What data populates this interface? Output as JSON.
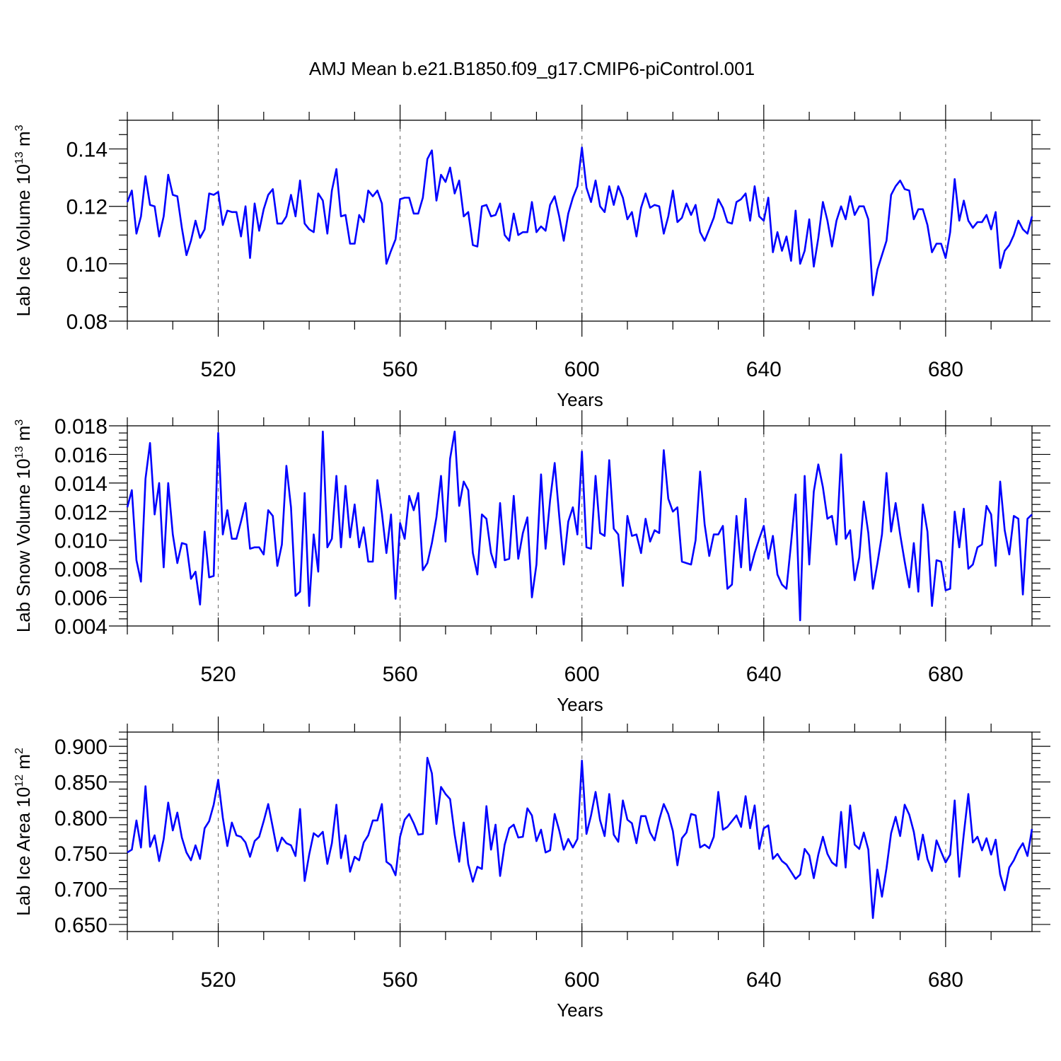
{
  "figure": {
    "title": "AMJ Mean b.e21.B1850.f09_g17.CMIP6-piControl.001"
  },
  "chart_data": [
    {
      "type": "line",
      "xlabel": "Years",
      "ylabel_main": "Lab Ice Volume 10",
      "ylabel_exp": "13",
      "ylabel_unit": " m",
      "ylabel_unit_exp": "3",
      "xlim": [
        500,
        699
      ],
      "ylim": [
        0.08,
        0.15
      ],
      "xticks": [
        520,
        560,
        600,
        640,
        680
      ],
      "xticklabels": [
        "520",
        "560",
        "600",
        "640",
        "680"
      ],
      "yticks": [
        0.08,
        0.1,
        0.12,
        0.14
      ],
      "yticklabels": [
        "0.08",
        "0.10",
        "0.12",
        "0.14"
      ],
      "yminor_step": 0.005,
      "grid_x_dashed": true,
      "color": "#0000ff",
      "x_start": 500,
      "x_step": 1,
      "values": [
        0.1215,
        0.1255,
        0.1105,
        0.1165,
        0.1305,
        0.1205,
        0.12,
        0.1095,
        0.1165,
        0.131,
        0.124,
        0.1235,
        0.1125,
        0.103,
        0.108,
        0.115,
        0.109,
        0.112,
        0.1245,
        0.124,
        0.125,
        0.1135,
        0.1185,
        0.118,
        0.118,
        0.1095,
        0.12,
        0.102,
        0.121,
        0.1115,
        0.119,
        0.124,
        0.126,
        0.114,
        0.114,
        0.1165,
        0.124,
        0.1165,
        0.129,
        0.114,
        0.112,
        0.111,
        0.1245,
        0.122,
        0.1105,
        0.1255,
        0.133,
        0.1165,
        0.117,
        0.107,
        0.107,
        0.117,
        0.1145,
        0.1255,
        0.1235,
        0.1255,
        0.121,
        0.1,
        0.1045,
        0.1085,
        0.1225,
        0.123,
        0.123,
        0.1175,
        0.1175,
        0.123,
        0.1365,
        0.1395,
        0.122,
        0.131,
        0.1285,
        0.1335,
        0.1245,
        0.129,
        0.1165,
        0.118,
        0.1065,
        0.106,
        0.12,
        0.1205,
        0.1165,
        0.117,
        0.121,
        0.11,
        0.108,
        0.1175,
        0.11,
        0.111,
        0.111,
        0.1215,
        0.111,
        0.113,
        0.1115,
        0.1205,
        0.1235,
        0.1165,
        0.108,
        0.1175,
        0.123,
        0.127,
        0.1405,
        0.1265,
        0.1215,
        0.129,
        0.12,
        0.118,
        0.127,
        0.1205,
        0.127,
        0.123,
        0.1155,
        0.118,
        0.1095,
        0.1195,
        0.1245,
        0.1195,
        0.1205,
        0.12,
        0.1105,
        0.1165,
        0.1255,
        0.1145,
        0.116,
        0.121,
        0.117,
        0.1205,
        0.111,
        0.108,
        0.112,
        0.116,
        0.1225,
        0.1195,
        0.1145,
        0.114,
        0.1215,
        0.1225,
        0.1245,
        0.115,
        0.127,
        0.1165,
        0.115,
        0.123,
        0.104,
        0.111,
        0.1045,
        0.1095,
        0.101,
        0.1185,
        0.1,
        0.1045,
        0.1155,
        0.099,
        0.109,
        0.1215,
        0.115,
        0.106,
        0.115,
        0.12,
        0.1155,
        0.1235,
        0.117,
        0.12,
        0.12,
        0.1155,
        0.089,
        0.098,
        0.103,
        0.108,
        0.124,
        0.127,
        0.129,
        0.126,
        0.1255,
        0.1155,
        0.119,
        0.119,
        0.1135,
        0.104,
        0.107,
        0.107,
        0.102,
        0.111,
        0.1295,
        0.115,
        0.122,
        0.115,
        0.1125,
        0.1145,
        0.1145,
        0.117,
        0.112,
        0.118,
        0.0985,
        0.1045,
        0.1065,
        0.11,
        0.115,
        0.112,
        0.1105,
        0.1165
      ]
    },
    {
      "type": "line",
      "xlabel": "Years",
      "ylabel_main": "Lab Snow Volume 10",
      "ylabel_exp": "13",
      "ylabel_unit": " m",
      "ylabel_unit_exp": "3",
      "xlim": [
        500,
        699
      ],
      "ylim": [
        0.004,
        0.018
      ],
      "xticks": [
        520,
        560,
        600,
        640,
        680
      ],
      "xticklabels": [
        "520",
        "560",
        "600",
        "640",
        "680"
      ],
      "yticks": [
        0.004,
        0.006,
        0.008,
        0.01,
        0.012,
        0.014,
        0.016,
        0.018
      ],
      "yticklabels": [
        "0.004",
        "0.006",
        "0.008",
        "0.010",
        "0.012",
        "0.014",
        "0.016",
        "0.018"
      ],
      "yminor_step": 0.0005,
      "grid_x_dashed": true,
      "color": "#0000ff",
      "x_start": 500,
      "x_step": 1,
      "values": [
        0.0123,
        0.0135,
        0.0086,
        0.0071,
        0.0143,
        0.0168,
        0.0118,
        0.014,
        0.0081,
        0.014,
        0.0104,
        0.0084,
        0.0098,
        0.0097,
        0.0073,
        0.0078,
        0.0055,
        0.0106,
        0.0074,
        0.0075,
        0.0175,
        0.0104,
        0.0121,
        0.0101,
        0.0101,
        0.0113,
        0.0126,
        0.0094,
        0.0095,
        0.0095,
        0.009,
        0.0121,
        0.0117,
        0.0082,
        0.0097,
        0.0152,
        0.0123,
        0.0061,
        0.0064,
        0.0133,
        0.0054,
        0.0104,
        0.0078,
        0.0176,
        0.0095,
        0.0101,
        0.0145,
        0.0095,
        0.0138,
        0.0102,
        0.0125,
        0.0095,
        0.0109,
        0.0085,
        0.0085,
        0.0142,
        0.0119,
        0.0091,
        0.0118,
        0.0059,
        0.0112,
        0.0101,
        0.0131,
        0.0121,
        0.0133,
        0.0079,
        0.0084,
        0.0098,
        0.0116,
        0.0145,
        0.0099,
        0.0157,
        0.0176,
        0.0124,
        0.0141,
        0.0135,
        0.0091,
        0.0076,
        0.0118,
        0.0115,
        0.0091,
        0.0081,
        0.0126,
        0.0086,
        0.0087,
        0.0131,
        0.0087,
        0.0105,
        0.0116,
        0.006,
        0.0083,
        0.0146,
        0.0094,
        0.0128,
        0.0154,
        0.0117,
        0.0083,
        0.0113,
        0.0123,
        0.0104,
        0.0162,
        0.0095,
        0.0094,
        0.0145,
        0.0105,
        0.0103,
        0.0156,
        0.0108,
        0.0104,
        0.0068,
        0.0117,
        0.0103,
        0.0104,
        0.0091,
        0.0115,
        0.0099,
        0.0107,
        0.0105,
        0.0163,
        0.0129,
        0.012,
        0.0123,
        0.0085,
        0.0084,
        0.0083,
        0.01,
        0.0148,
        0.0111,
        0.0089,
        0.0104,
        0.0104,
        0.011,
        0.0066,
        0.0069,
        0.0117,
        0.0081,
        0.0129,
        0.0079,
        0.0091,
        0.0101,
        0.011,
        0.0087,
        0.0103,
        0.0076,
        0.0069,
        0.0066,
        0.0098,
        0.0132,
        0.0044,
        0.0145,
        0.0083,
        0.0134,
        0.0153,
        0.0137,
        0.0115,
        0.0117,
        0.0097,
        0.016,
        0.0101,
        0.0107,
        0.0072,
        0.0088,
        0.0127,
        0.0105,
        0.0066,
        0.0084,
        0.0104,
        0.0147,
        0.0106,
        0.0126,
        0.0104,
        0.0085,
        0.0067,
        0.0098,
        0.0064,
        0.0125,
        0.0106,
        0.0054,
        0.0086,
        0.0085,
        0.0065,
        0.0066,
        0.012,
        0.0095,
        0.0122,
        0.008,
        0.0083,
        0.0095,
        0.0097,
        0.0124,
        0.0118,
        0.0082,
        0.0141,
        0.0107,
        0.009,
        0.0117,
        0.0115,
        0.0062,
        0.0115,
        0.0118
      ]
    },
    {
      "type": "line",
      "xlabel": "Years",
      "ylabel_main": "Lab Ice Area 10",
      "ylabel_exp": "12",
      "ylabel_unit": " m",
      "ylabel_unit_exp": "2",
      "xlim": [
        500,
        699
      ],
      "ylim": [
        0.64,
        0.92
      ],
      "xticks": [
        520,
        560,
        600,
        640,
        680
      ],
      "xticklabels": [
        "520",
        "560",
        "600",
        "640",
        "680"
      ],
      "yticks": [
        0.65,
        0.7,
        0.75,
        0.8,
        0.85,
        0.9
      ],
      "yticklabels": [
        "0.650",
        "0.700",
        "0.750",
        "0.800",
        "0.850",
        "0.900"
      ],
      "yminor_step": 0.01,
      "grid_x_dashed": true,
      "color": "#0000ff",
      "x_start": 500,
      "x_step": 1,
      "values": [
        0.751,
        0.755,
        0.796,
        0.758,
        0.844,
        0.759,
        0.775,
        0.739,
        0.77,
        0.821,
        0.782,
        0.807,
        0.772,
        0.751,
        0.74,
        0.761,
        0.742,
        0.785,
        0.795,
        0.818,
        0.853,
        0.8,
        0.76,
        0.793,
        0.775,
        0.773,
        0.765,
        0.745,
        0.767,
        0.773,
        0.795,
        0.819,
        0.786,
        0.753,
        0.772,
        0.764,
        0.761,
        0.746,
        0.812,
        0.711,
        0.748,
        0.778,
        0.773,
        0.78,
        0.735,
        0.764,
        0.818,
        0.743,
        0.775,
        0.724,
        0.745,
        0.74,
        0.765,
        0.775,
        0.796,
        0.796,
        0.819,
        0.738,
        0.733,
        0.719,
        0.773,
        0.797,
        0.805,
        0.792,
        0.776,
        0.777,
        0.884,
        0.862,
        0.791,
        0.843,
        0.833,
        0.826,
        0.776,
        0.738,
        0.793,
        0.735,
        0.71,
        0.731,
        0.728,
        0.816,
        0.755,
        0.79,
        0.718,
        0.762,
        0.785,
        0.79,
        0.772,
        0.773,
        0.813,
        0.803,
        0.767,
        0.783,
        0.751,
        0.754,
        0.805,
        0.782,
        0.755,
        0.77,
        0.758,
        0.77,
        0.88,
        0.777,
        0.803,
        0.836,
        0.796,
        0.774,
        0.833,
        0.776,
        0.766,
        0.824,
        0.797,
        0.792,
        0.764,
        0.802,
        0.802,
        0.779,
        0.768,
        0.797,
        0.819,
        0.805,
        0.781,
        0.733,
        0.771,
        0.779,
        0.805,
        0.803,
        0.758,
        0.762,
        0.757,
        0.773,
        0.836,
        0.783,
        0.787,
        0.795,
        0.803,
        0.787,
        0.83,
        0.785,
        0.817,
        0.756,
        0.785,
        0.789,
        0.742,
        0.749,
        0.739,
        0.734,
        0.724,
        0.714,
        0.72,
        0.756,
        0.747,
        0.715,
        0.748,
        0.773,
        0.749,
        0.737,
        0.732,
        0.808,
        0.73,
        0.817,
        0.762,
        0.756,
        0.779,
        0.755,
        0.659,
        0.727,
        0.689,
        0.729,
        0.778,
        0.801,
        0.774,
        0.818,
        0.804,
        0.78,
        0.741,
        0.776,
        0.742,
        0.725,
        0.768,
        0.752,
        0.737,
        0.748,
        0.824,
        0.717,
        0.777,
        0.833,
        0.765,
        0.773,
        0.754,
        0.771,
        0.748,
        0.769,
        0.72,
        0.698,
        0.73,
        0.74,
        0.754,
        0.764,
        0.746,
        0.784
      ]
    }
  ]
}
